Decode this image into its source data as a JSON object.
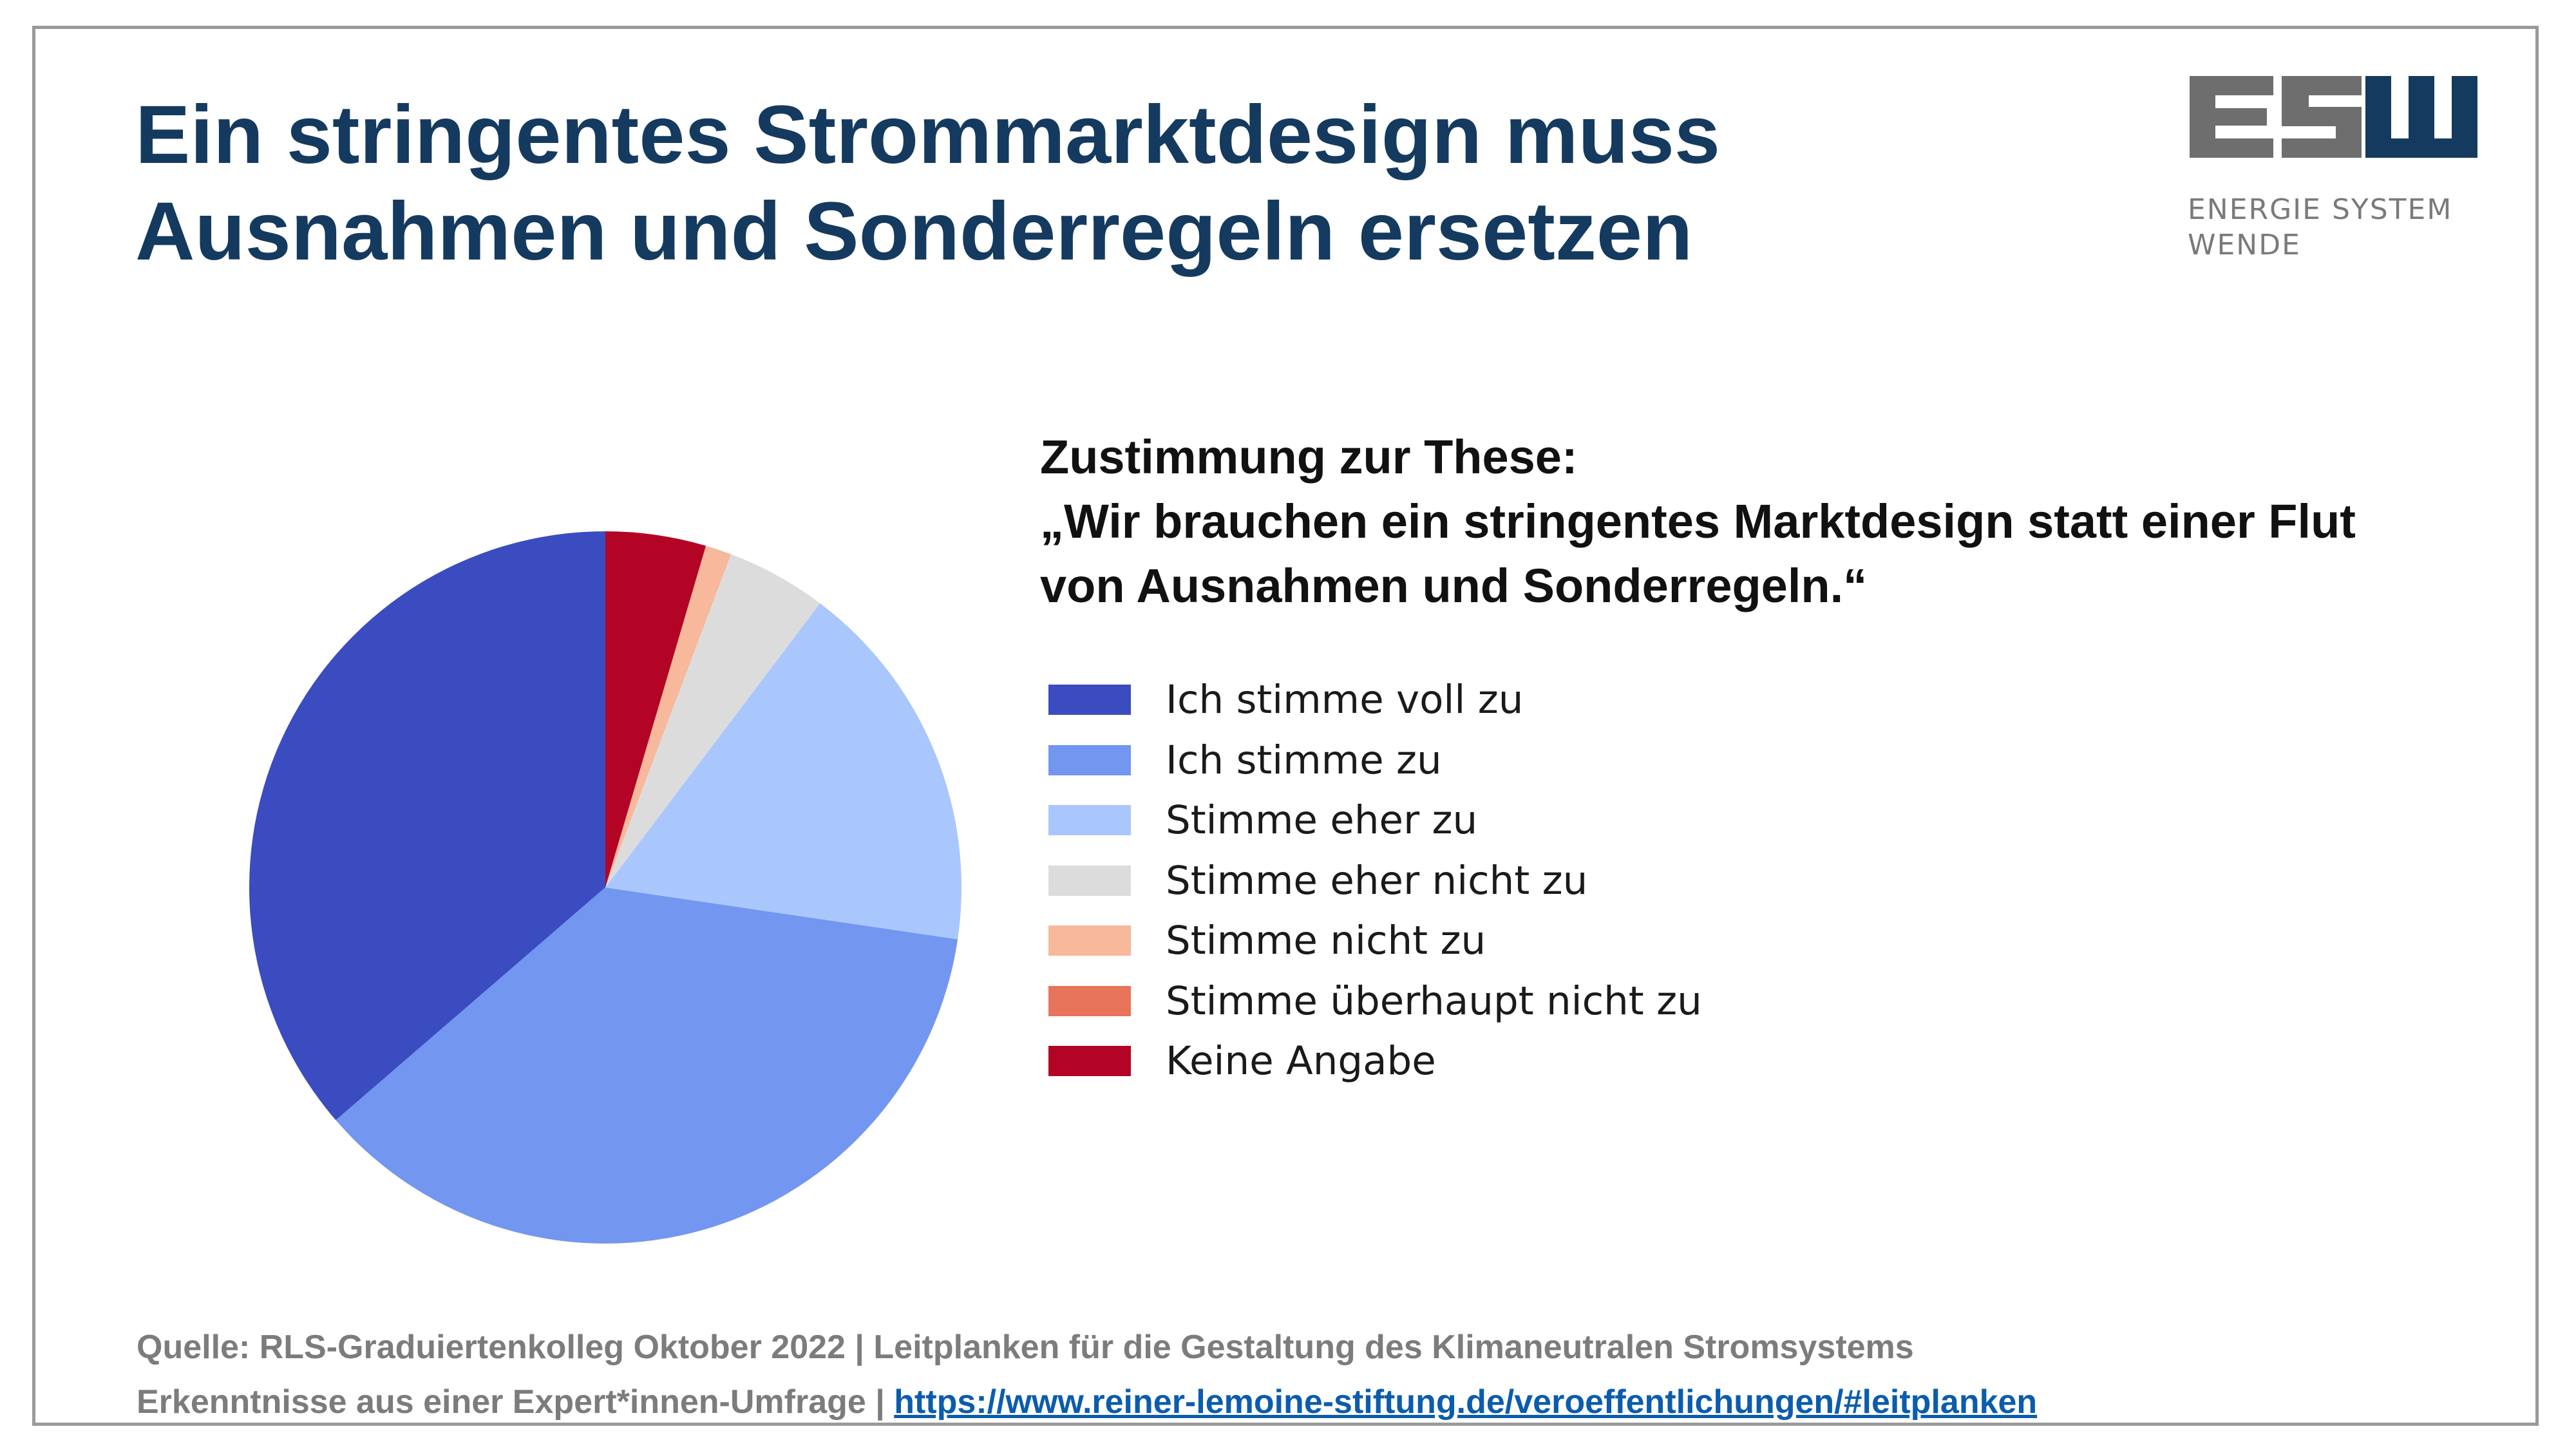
{
  "slide": {
    "title_line1": "Ein stringentes Strommarktdesign muss",
    "title_line2": "Ausnahmen und Sonderregeln ersetzen"
  },
  "logo": {
    "text": "ESW",
    "sub_line1": "ENERGIE SYSTEM",
    "sub_line2": "WENDE",
    "colors": {
      "gray": "#6e6e6e",
      "navy": "#153a5f"
    }
  },
  "question": {
    "line1": "Zustimmung zur These:",
    "line2": "„Wir brauchen ein stringentes Marktdesign statt einer Flut",
    "line3": "von Ausnahmen und Sonderregeln.“"
  },
  "chart_data": {
    "type": "pie",
    "title": "",
    "slices": [
      {
        "label": "Ich stimme voll zu",
        "value": 36.7,
        "color": "#3b4cc0"
      },
      {
        "label": "Ich stimme zu",
        "value": 36.7,
        "color": "#7396f0"
      },
      {
        "label": "Stimme eher zu",
        "value": 17.2,
        "color": "#aac7fd"
      },
      {
        "label": "Stimme eher nicht zu",
        "value": 4.6,
        "color": "#dddcdc"
      },
      {
        "label": "Stimme nicht zu",
        "value": 1.2,
        "color": "#f7b89c"
      },
      {
        "label": "Stimme überhaupt nicht zu",
        "value": 0.0,
        "color": "#e7745b"
      },
      {
        "label": "Keine Angabe",
        "value": 4.6,
        "color": "#b40426"
      }
    ],
    "start_angle_deg": 90,
    "direction": "counterclockwise",
    "legend_position": "right"
  },
  "footer": {
    "line1": "Quelle: RLS-Graduiertenkolleg Oktober 2022 | Leitplanken für die Gestaltung des Klimaneutralen Stromsystems",
    "line2_prefix": "Erkenntnisse aus einer Expert*innen-Umfrage | ",
    "link_text": "https://www.reiner-lemoine-stiftung.de/veroeffentlichungen/#leitplanken"
  }
}
